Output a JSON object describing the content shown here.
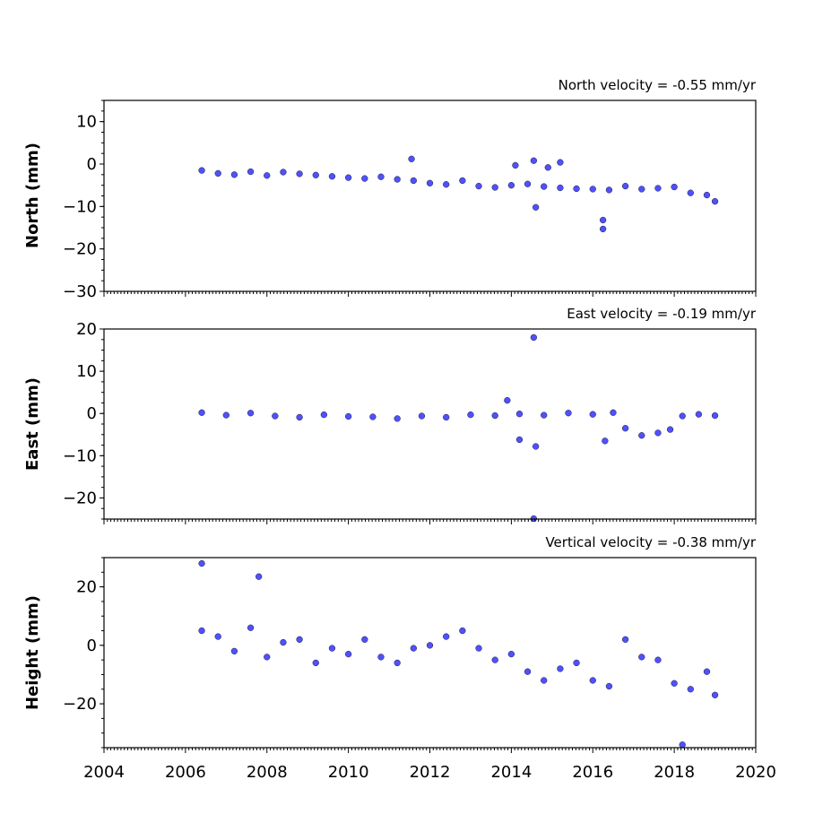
{
  "chart_data": [
    {
      "type": "scatter",
      "id": "north",
      "title": "North velocity = -0.55 mm/yr",
      "ylabel": "North (mm)",
      "xlim": [
        2004,
        2020
      ],
      "ylim": [
        -30,
        15
      ],
      "yticks": [
        -30,
        -20,
        -10,
        0,
        10
      ],
      "xticks": [
        2004,
        2006,
        2008,
        2010,
        2012,
        2014,
        2016,
        2018,
        2020
      ],
      "color": "#5050ff",
      "series": [
        {
          "values": [
            {
              "x": 2006.4,
              "y": -1.5
            },
            {
              "x": 2006.8,
              "y": -2.2
            },
            {
              "x": 2007.2,
              "y": -2.5
            },
            {
              "x": 2007.6,
              "y": -1.8
            },
            {
              "x": 2008.0,
              "y": -2.7
            },
            {
              "x": 2008.4,
              "y": -1.9
            },
            {
              "x": 2008.8,
              "y": -2.3
            },
            {
              "x": 2009.2,
              "y": -2.6
            },
            {
              "x": 2009.6,
              "y": -2.9
            },
            {
              "x": 2010.0,
              "y": -3.2
            },
            {
              "x": 2010.4,
              "y": -3.4
            },
            {
              "x": 2010.8,
              "y": -3.0
            },
            {
              "x": 2011.2,
              "y": -3.6
            },
            {
              "x": 2011.6,
              "y": -3.9
            },
            {
              "x": 2012.0,
              "y": -4.5
            },
            {
              "x": 2012.4,
              "y": -4.8
            },
            {
              "x": 2012.8,
              "y": -3.9
            },
            {
              "x": 2013.2,
              "y": -5.2
            },
            {
              "x": 2013.6,
              "y": -5.5
            },
            {
              "x": 2014.0,
              "y": -5.0
            },
            {
              "x": 2014.4,
              "y": -4.7
            },
            {
              "x": 2014.8,
              "y": -5.3
            },
            {
              "x": 2015.2,
              "y": -5.6
            },
            {
              "x": 2015.6,
              "y": -5.8
            },
            {
              "x": 2016.0,
              "y": -5.9
            },
            {
              "x": 2016.4,
              "y": -6.1
            },
            {
              "x": 2016.8,
              "y": -5.2
            },
            {
              "x": 2017.2,
              "y": -5.9
            },
            {
              "x": 2017.6,
              "y": -5.7
            },
            {
              "x": 2018.0,
              "y": -5.4
            },
            {
              "x": 2018.4,
              "y": -6.8
            },
            {
              "x": 2018.8,
              "y": -7.3
            },
            {
              "x": 2019.0,
              "y": -8.8
            },
            {
              "x": 2011.55,
              "y": 1.2
            },
            {
              "x": 2014.55,
              "y": 0.8
            },
            {
              "x": 2014.9,
              "y": -0.8
            },
            {
              "x": 2015.2,
              "y": 0.4
            },
            {
              "x": 2016.25,
              "y": -13.2
            },
            {
              "x": 2016.25,
              "y": -15.3
            },
            {
              "x": 2014.6,
              "y": -10.2
            },
            {
              "x": 2014.1,
              "y": -0.3
            }
          ]
        }
      ]
    },
    {
      "type": "scatter",
      "id": "east",
      "title": "East velocity = -0.19 mm/yr",
      "ylabel": "East (mm)",
      "xlim": [
        2004,
        2020
      ],
      "ylim": [
        -25,
        20
      ],
      "yticks": [
        -20,
        -10,
        0,
        10,
        20
      ],
      "xticks": [
        2004,
        2006,
        2008,
        2010,
        2012,
        2014,
        2016,
        2018,
        2020
      ],
      "color": "#5050ff",
      "series": [
        {
          "values": [
            {
              "x": 2006.4,
              "y": 0.2
            },
            {
              "x": 2007.0,
              "y": -0.4
            },
            {
              "x": 2007.6,
              "y": 0.1
            },
            {
              "x": 2008.2,
              "y": -0.6
            },
            {
              "x": 2008.8,
              "y": -0.9
            },
            {
              "x": 2009.4,
              "y": -0.3
            },
            {
              "x": 2010.0,
              "y": -0.7
            },
            {
              "x": 2010.6,
              "y": -0.8
            },
            {
              "x": 2011.2,
              "y": -1.2
            },
            {
              "x": 2011.8,
              "y": -0.6
            },
            {
              "x": 2012.4,
              "y": -0.9
            },
            {
              "x": 2013.0,
              "y": -0.3
            },
            {
              "x": 2013.6,
              "y": -0.5
            },
            {
              "x": 2014.2,
              "y": -0.1
            },
            {
              "x": 2014.8,
              "y": -0.4
            },
            {
              "x": 2015.4,
              "y": 0.1
            },
            {
              "x": 2016.0,
              "y": -0.2
            },
            {
              "x": 2016.5,
              "y": 0.2
            },
            {
              "x": 2016.8,
              "y": -3.5
            },
            {
              "x": 2017.2,
              "y": -5.2
            },
            {
              "x": 2017.6,
              "y": -4.6
            },
            {
              "x": 2017.9,
              "y": -3.8
            },
            {
              "x": 2018.2,
              "y": -0.6
            },
            {
              "x": 2018.6,
              "y": -0.2
            },
            {
              "x": 2019.0,
              "y": -0.5
            },
            {
              "x": 2014.55,
              "y": 18.0
            },
            {
              "x": 2014.55,
              "y": -24.9
            },
            {
              "x": 2014.6,
              "y": -7.8
            },
            {
              "x": 2014.2,
              "y": -6.2
            },
            {
              "x": 2016.3,
              "y": -6.5
            },
            {
              "x": 2013.9,
              "y": 3.1
            }
          ]
        }
      ]
    },
    {
      "type": "scatter",
      "id": "height",
      "title": "Vertical velocity = -0.38 mm/yr",
      "ylabel": "Height (mm)",
      "xlim": [
        2004,
        2020
      ],
      "ylim": [
        -35,
        30
      ],
      "yticks": [
        -20,
        0,
        20
      ],
      "xticks": [
        2004,
        2006,
        2008,
        2010,
        2012,
        2014,
        2016,
        2018,
        2020
      ],
      "color": "#5050ff",
      "series": [
        {
          "values": [
            {
              "x": 2006.4,
              "y": 5.0
            },
            {
              "x": 2006.8,
              "y": 3.0
            },
            {
              "x": 2007.2,
              "y": -2.0
            },
            {
              "x": 2007.6,
              "y": 6.0
            },
            {
              "x": 2008.0,
              "y": -4.0
            },
            {
              "x": 2008.4,
              "y": 1.0
            },
            {
              "x": 2008.8,
              "y": 2.0
            },
            {
              "x": 2009.2,
              "y": -6.0
            },
            {
              "x": 2009.6,
              "y": -1.0
            },
            {
              "x": 2010.0,
              "y": -3.0
            },
            {
              "x": 2010.4,
              "y": 2.0
            },
            {
              "x": 2010.8,
              "y": -4.0
            },
            {
              "x": 2011.2,
              "y": -6.0
            },
            {
              "x": 2011.6,
              "y": -1.0
            },
            {
              "x": 2012.0,
              "y": 0.0
            },
            {
              "x": 2012.4,
              "y": 3.0
            },
            {
              "x": 2012.8,
              "y": 5.0
            },
            {
              "x": 2013.2,
              "y": -1.0
            },
            {
              "x": 2013.6,
              "y": -5.0
            },
            {
              "x": 2014.0,
              "y": -3.0
            },
            {
              "x": 2014.4,
              "y": -9.0
            },
            {
              "x": 2014.8,
              "y": -12.0
            },
            {
              "x": 2015.2,
              "y": -8.0
            },
            {
              "x": 2015.6,
              "y": -6.0
            },
            {
              "x": 2016.0,
              "y": -12.0
            },
            {
              "x": 2016.4,
              "y": -14.0
            },
            {
              "x": 2016.8,
              "y": 2.0
            },
            {
              "x": 2017.2,
              "y": -4.0
            },
            {
              "x": 2017.6,
              "y": -5.0
            },
            {
              "x": 2018.0,
              "y": -13.0
            },
            {
              "x": 2018.4,
              "y": -15.0
            },
            {
              "x": 2018.8,
              "y": -9.0
            },
            {
              "x": 2019.0,
              "y": -17.0
            },
            {
              "x": 2006.4,
              "y": 28.0
            },
            {
              "x": 2007.8,
              "y": 23.5
            },
            {
              "x": 2018.2,
              "y": -34.0
            }
          ]
        }
      ]
    }
  ]
}
